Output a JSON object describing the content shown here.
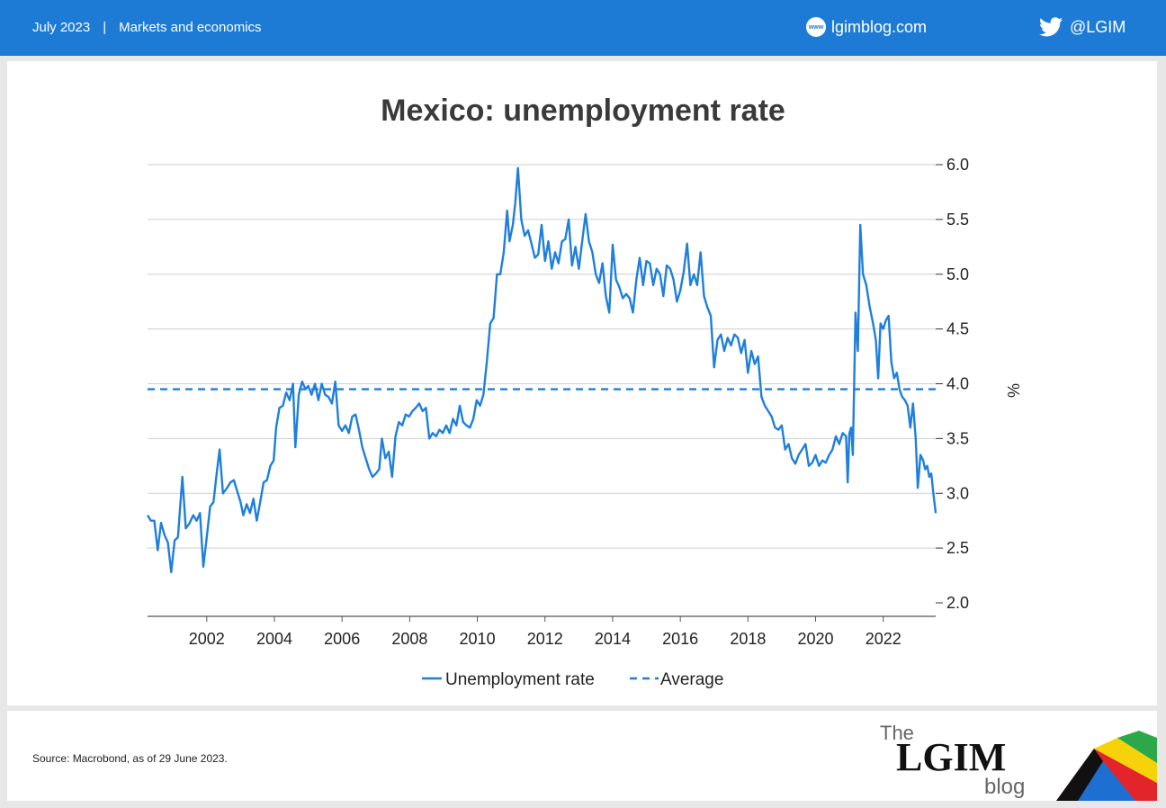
{
  "header": {
    "date": "July 2023",
    "separator": "|",
    "section": "Markets and economics",
    "www_badge": "www",
    "site": "lgimblog.com",
    "handle": "@LGIM"
  },
  "footer": {
    "source": "Source: Macrobond, as of 29 June 2023.",
    "logo_the": "The",
    "logo_main": "LGIM",
    "logo_blog": "blog"
  },
  "colors": {
    "header_bg": "#1d7bd6",
    "line": "#1f7fdb"
  },
  "chart_data": {
    "type": "line",
    "title": "Mexico: unemployment rate",
    "ylabel": "%",
    "xlabel": "",
    "ylim": [
      2.0,
      6.0
    ],
    "xlim": [
      2000.25,
      2023.55
    ],
    "yticks": [
      "2.0",
      "2.5",
      "3.0",
      "3.5",
      "4.0",
      "4.5",
      "5.0",
      "5.5",
      "6.0"
    ],
    "xticks": [
      "2002",
      "2004",
      "2006",
      "2008",
      "2010",
      "2012",
      "2014",
      "2016",
      "2018",
      "2020",
      "2022"
    ],
    "grid": true,
    "legend_position": "bottom",
    "series": [
      {
        "name": "Unemployment rate",
        "style": "solid",
        "points": [
          [
            2000.25,
            2.8
          ],
          [
            2000.35,
            2.75
          ],
          [
            2000.45,
            2.75
          ],
          [
            2000.55,
            2.48
          ],
          [
            2000.65,
            2.73
          ],
          [
            2000.75,
            2.62
          ],
          [
            2000.85,
            2.55
          ],
          [
            2000.95,
            2.28
          ],
          [
            2001.05,
            2.57
          ],
          [
            2001.15,
            2.6
          ],
          [
            2001.28,
            3.15
          ],
          [
            2001.38,
            2.68
          ],
          [
            2001.48,
            2.72
          ],
          [
            2001.6,
            2.8
          ],
          [
            2001.7,
            2.75
          ],
          [
            2001.8,
            2.82
          ],
          [
            2001.9,
            2.33
          ],
          [
            2002.0,
            2.6
          ],
          [
            2002.1,
            2.88
          ],
          [
            2002.2,
            2.92
          ],
          [
            2002.3,
            3.2
          ],
          [
            2002.38,
            3.4
          ],
          [
            2002.48,
            3.0
          ],
          [
            2002.6,
            3.05
          ],
          [
            2002.7,
            3.1
          ],
          [
            2002.8,
            3.12
          ],
          [
            2002.9,
            3.02
          ],
          [
            2003.0,
            2.92
          ],
          [
            2003.08,
            2.8
          ],
          [
            2003.18,
            2.9
          ],
          [
            2003.28,
            2.82
          ],
          [
            2003.38,
            2.95
          ],
          [
            2003.48,
            2.75
          ],
          [
            2003.58,
            2.92
          ],
          [
            2003.68,
            3.1
          ],
          [
            2003.78,
            3.12
          ],
          [
            2003.88,
            3.25
          ],
          [
            2003.98,
            3.3
          ],
          [
            2004.05,
            3.6
          ],
          [
            2004.15,
            3.78
          ],
          [
            2004.25,
            3.8
          ],
          [
            2004.35,
            3.92
          ],
          [
            2004.45,
            3.85
          ],
          [
            2004.55,
            4.0
          ],
          [
            2004.62,
            3.42
          ],
          [
            2004.72,
            3.9
          ],
          [
            2004.82,
            4.02
          ],
          [
            2004.92,
            3.95
          ],
          [
            2005.0,
            3.98
          ],
          [
            2005.1,
            3.9
          ],
          [
            2005.2,
            4.0
          ],
          [
            2005.3,
            3.85
          ],
          [
            2005.4,
            4.0
          ],
          [
            2005.5,
            3.9
          ],
          [
            2005.6,
            3.88
          ],
          [
            2005.7,
            3.82
          ],
          [
            2005.8,
            4.02
          ],
          [
            2005.9,
            3.62
          ],
          [
            2006.0,
            3.57
          ],
          [
            2006.1,
            3.62
          ],
          [
            2006.2,
            3.55
          ],
          [
            2006.3,
            3.7
          ],
          [
            2006.4,
            3.72
          ],
          [
            2006.5,
            3.58
          ],
          [
            2006.6,
            3.42
          ],
          [
            2006.7,
            3.32
          ],
          [
            2006.8,
            3.22
          ],
          [
            2006.9,
            3.15
          ],
          [
            2007.0,
            3.18
          ],
          [
            2007.1,
            3.22
          ],
          [
            2007.18,
            3.5
          ],
          [
            2007.28,
            3.32
          ],
          [
            2007.38,
            3.38
          ],
          [
            2007.48,
            3.15
          ],
          [
            2007.58,
            3.52
          ],
          [
            2007.68,
            3.65
          ],
          [
            2007.78,
            3.62
          ],
          [
            2007.88,
            3.72
          ],
          [
            2007.98,
            3.7
          ],
          [
            2008.08,
            3.75
          ],
          [
            2008.18,
            3.78
          ],
          [
            2008.28,
            3.82
          ],
          [
            2008.38,
            3.75
          ],
          [
            2008.48,
            3.78
          ],
          [
            2008.58,
            3.5
          ],
          [
            2008.68,
            3.55
          ],
          [
            2008.78,
            3.52
          ],
          [
            2008.88,
            3.58
          ],
          [
            2008.98,
            3.55
          ],
          [
            2009.08,
            3.62
          ],
          [
            2009.18,
            3.55
          ],
          [
            2009.28,
            3.68
          ],
          [
            2009.38,
            3.62
          ],
          [
            2009.48,
            3.8
          ],
          [
            2009.58,
            3.65
          ],
          [
            2009.68,
            3.62
          ],
          [
            2009.78,
            3.6
          ],
          [
            2009.88,
            3.68
          ],
          [
            2009.98,
            3.85
          ],
          [
            2010.08,
            3.8
          ],
          [
            2010.18,
            3.9
          ],
          [
            2010.28,
            4.2
          ],
          [
            2010.38,
            4.55
          ],
          [
            2010.48,
            4.6
          ],
          [
            2010.58,
            5.0
          ],
          [
            2010.68,
            5.0
          ],
          [
            2010.78,
            5.2
          ],
          [
            2010.88,
            5.58
          ],
          [
            2010.95,
            5.3
          ],
          [
            2011.05,
            5.45
          ],
          [
            2011.12,
            5.65
          ],
          [
            2011.2,
            5.97
          ],
          [
            2011.3,
            5.5
          ],
          [
            2011.4,
            5.35
          ],
          [
            2011.5,
            5.4
          ],
          [
            2011.6,
            5.28
          ],
          [
            2011.7,
            5.15
          ],
          [
            2011.8,
            5.18
          ],
          [
            2011.9,
            5.45
          ],
          [
            2012.0,
            5.12
          ],
          [
            2012.1,
            5.3
          ],
          [
            2012.2,
            5.05
          ],
          [
            2012.3,
            5.2
          ],
          [
            2012.4,
            5.1
          ],
          [
            2012.5,
            5.3
          ],
          [
            2012.6,
            5.32
          ],
          [
            2012.7,
            5.5
          ],
          [
            2012.8,
            5.08
          ],
          [
            2012.9,
            5.25
          ],
          [
            2013.0,
            5.05
          ],
          [
            2013.1,
            5.3
          ],
          [
            2013.2,
            5.55
          ],
          [
            2013.3,
            5.3
          ],
          [
            2013.4,
            5.2
          ],
          [
            2013.5,
            5.0
          ],
          [
            2013.6,
            4.92
          ],
          [
            2013.7,
            5.1
          ],
          [
            2013.8,
            4.8
          ],
          [
            2013.9,
            4.65
          ],
          [
            2014.0,
            5.27
          ],
          [
            2014.1,
            4.95
          ],
          [
            2014.2,
            4.88
          ],
          [
            2014.3,
            4.78
          ],
          [
            2014.4,
            4.82
          ],
          [
            2014.5,
            4.78
          ],
          [
            2014.6,
            4.65
          ],
          [
            2014.7,
            4.95
          ],
          [
            2014.8,
            5.15
          ],
          [
            2014.9,
            4.9
          ],
          [
            2015.0,
            5.12
          ],
          [
            2015.1,
            5.1
          ],
          [
            2015.2,
            4.9
          ],
          [
            2015.3,
            5.05
          ],
          [
            2015.4,
            5.0
          ],
          [
            2015.5,
            4.8
          ],
          [
            2015.6,
            5.08
          ],
          [
            2015.7,
            5.05
          ],
          [
            2015.8,
            4.95
          ],
          [
            2015.9,
            4.75
          ],
          [
            2016.0,
            4.85
          ],
          [
            2016.1,
            5.02
          ],
          [
            2016.2,
            5.28
          ],
          [
            2016.3,
            4.9
          ],
          [
            2016.4,
            5.0
          ],
          [
            2016.5,
            4.9
          ],
          [
            2016.6,
            5.2
          ],
          [
            2016.7,
            4.8
          ],
          [
            2016.8,
            4.7
          ],
          [
            2016.9,
            4.62
          ],
          [
            2017.0,
            4.15
          ],
          [
            2017.1,
            4.4
          ],
          [
            2017.2,
            4.45
          ],
          [
            2017.3,
            4.3
          ],
          [
            2017.4,
            4.42
          ],
          [
            2017.5,
            4.35
          ],
          [
            2017.6,
            4.45
          ],
          [
            2017.7,
            4.42
          ],
          [
            2017.8,
            4.28
          ],
          [
            2017.9,
            4.4
          ],
          [
            2018.0,
            4.1
          ],
          [
            2018.1,
            4.3
          ],
          [
            2018.2,
            4.18
          ],
          [
            2018.3,
            4.25
          ],
          [
            2018.4,
            3.88
          ],
          [
            2018.5,
            3.8
          ],
          [
            2018.6,
            3.75
          ],
          [
            2018.7,
            3.7
          ],
          [
            2018.8,
            3.6
          ],
          [
            2018.9,
            3.58
          ],
          [
            2019.0,
            3.62
          ],
          [
            2019.1,
            3.4
          ],
          [
            2019.2,
            3.45
          ],
          [
            2019.3,
            3.32
          ],
          [
            2019.4,
            3.27
          ],
          [
            2019.5,
            3.35
          ],
          [
            2019.6,
            3.4
          ],
          [
            2019.7,
            3.45
          ],
          [
            2019.8,
            3.25
          ],
          [
            2019.9,
            3.28
          ],
          [
            2020.0,
            3.35
          ],
          [
            2020.1,
            3.25
          ],
          [
            2020.2,
            3.3
          ],
          [
            2020.3,
            3.28
          ],
          [
            2020.4,
            3.35
          ],
          [
            2020.5,
            3.4
          ],
          [
            2020.6,
            3.52
          ],
          [
            2020.7,
            3.45
          ],
          [
            2020.8,
            3.55
          ],
          [
            2020.9,
            3.52
          ],
          [
            2020.95,
            3.1
          ],
          [
            2021.0,
            3.55
          ],
          [
            2021.05,
            3.6
          ],
          [
            2021.1,
            3.35
          ],
          [
            2021.18,
            4.65
          ],
          [
            2021.25,
            4.3
          ],
          [
            2021.32,
            5.45
          ],
          [
            2021.4,
            5.0
          ],
          [
            2021.5,
            4.9
          ],
          [
            2021.6,
            4.7
          ],
          [
            2021.7,
            4.55
          ],
          [
            2021.78,
            4.4
          ],
          [
            2021.85,
            4.05
          ],
          [
            2021.92,
            4.55
          ],
          [
            2022.0,
            4.5
          ],
          [
            2022.08,
            4.58
          ],
          [
            2022.16,
            4.62
          ],
          [
            2022.24,
            4.2
          ],
          [
            2022.32,
            4.05
          ],
          [
            2022.4,
            4.1
          ],
          [
            2022.48,
            3.95
          ],
          [
            2022.56,
            3.88
          ],
          [
            2022.64,
            3.85
          ],
          [
            2022.72,
            3.8
          ],
          [
            2022.8,
            3.6
          ],
          [
            2022.88,
            3.82
          ],
          [
            2022.96,
            3.5
          ],
          [
            2023.02,
            3.05
          ],
          [
            2023.1,
            3.35
          ],
          [
            2023.18,
            3.3
          ],
          [
            2023.24,
            3.22
          ],
          [
            2023.3,
            3.25
          ],
          [
            2023.36,
            3.15
          ],
          [
            2023.42,
            3.18
          ],
          [
            2023.48,
            3.0
          ],
          [
            2023.52,
            2.9
          ],
          [
            2023.55,
            2.82
          ]
        ]
      },
      {
        "name": "Average",
        "style": "dashed",
        "value": 3.95
      }
    ]
  }
}
